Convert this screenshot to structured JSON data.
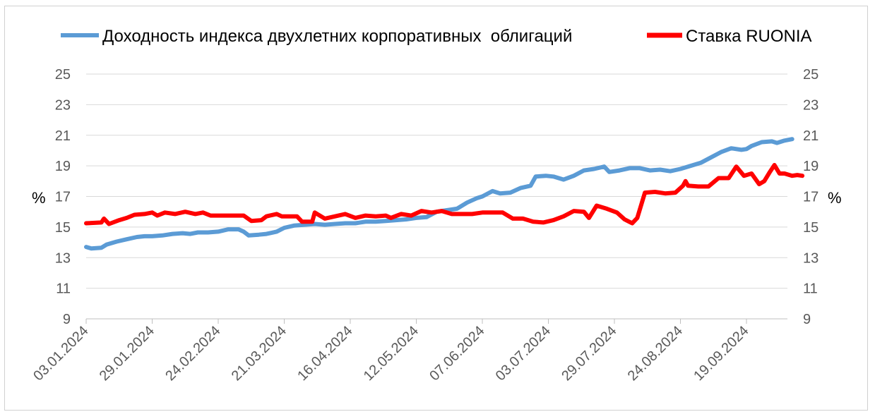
{
  "chart_data": {
    "type": "line",
    "y_unit_left": "%",
    "y_unit_right": "%",
    "ylim": [
      9,
      25
    ],
    "yticks": [
      9,
      11,
      13,
      15,
      17,
      19,
      21,
      23,
      25
    ],
    "grid": "horizontal",
    "legend_position": "top",
    "x_tick_labels": [
      "03.01.2024",
      "29.01.2024",
      "24.02.2024",
      "21.03.2024",
      "16.04.2024",
      "12.05.2024",
      "07.06.2024",
      "03.07.2024",
      "29.07.2024",
      "24.08.2024",
      "19.09.2024"
    ],
    "x_range": [
      "2024-01-03",
      "2024-10-07"
    ],
    "series": [
      {
        "name": "Доходность индекса двухлетних корпоративных  облигаций",
        "color": "#5b9bd5",
        "points": [
          [
            "2024-01-03",
            13.7
          ],
          [
            "2024-01-05",
            13.6
          ],
          [
            "2024-01-09",
            13.65
          ],
          [
            "2024-01-11",
            13.85
          ],
          [
            "2024-01-15",
            14.05
          ],
          [
            "2024-01-19",
            14.2
          ],
          [
            "2024-01-23",
            14.35
          ],
          [
            "2024-01-26",
            14.4
          ],
          [
            "2024-01-29",
            14.4
          ],
          [
            "2024-02-02",
            14.45
          ],
          [
            "2024-02-06",
            14.55
          ],
          [
            "2024-02-10",
            14.6
          ],
          [
            "2024-02-13",
            14.55
          ],
          [
            "2024-02-16",
            14.65
          ],
          [
            "2024-02-20",
            14.65
          ],
          [
            "2024-02-24",
            14.7
          ],
          [
            "2024-02-28",
            14.85
          ],
          [
            "2024-03-03",
            14.85
          ],
          [
            "2024-03-05",
            14.7
          ],
          [
            "2024-03-07",
            14.45
          ],
          [
            "2024-03-11",
            14.5
          ],
          [
            "2024-03-14",
            14.55
          ],
          [
            "2024-03-18",
            14.7
          ],
          [
            "2024-03-21",
            14.95
          ],
          [
            "2024-03-25",
            15.1
          ],
          [
            "2024-03-29",
            15.15
          ],
          [
            "2024-04-02",
            15.2
          ],
          [
            "2024-04-06",
            15.15
          ],
          [
            "2024-04-10",
            15.2
          ],
          [
            "2024-04-14",
            15.25
          ],
          [
            "2024-04-18",
            15.25
          ],
          [
            "2024-04-22",
            15.35
          ],
          [
            "2024-04-26",
            15.35
          ],
          [
            "2024-04-30",
            15.4
          ],
          [
            "2024-05-04",
            15.45
          ],
          [
            "2024-05-08",
            15.5
          ],
          [
            "2024-05-12",
            15.6
          ],
          [
            "2024-05-16",
            15.65
          ],
          [
            "2024-05-20",
            16.0
          ],
          [
            "2024-05-24",
            16.1
          ],
          [
            "2024-05-28",
            16.2
          ],
          [
            "2024-06-01",
            16.6
          ],
          [
            "2024-06-05",
            16.9
          ],
          [
            "2024-06-07",
            17.0
          ],
          [
            "2024-06-11",
            17.35
          ],
          [
            "2024-06-14",
            17.2
          ],
          [
            "2024-06-18",
            17.25
          ],
          [
            "2024-06-22",
            17.55
          ],
          [
            "2024-06-26",
            17.7
          ],
          [
            "2024-06-28",
            18.3
          ],
          [
            "2024-07-02",
            18.35
          ],
          [
            "2024-07-05",
            18.3
          ],
          [
            "2024-07-09",
            18.1
          ],
          [
            "2024-07-13",
            18.35
          ],
          [
            "2024-07-17",
            18.7
          ],
          [
            "2024-07-21",
            18.8
          ],
          [
            "2024-07-25",
            18.95
          ],
          [
            "2024-07-27",
            18.6
          ],
          [
            "2024-07-31",
            18.7
          ],
          [
            "2024-08-04",
            18.85
          ],
          [
            "2024-08-08",
            18.85
          ],
          [
            "2024-08-12",
            18.7
          ],
          [
            "2024-08-16",
            18.75
          ],
          [
            "2024-08-20",
            18.65
          ],
          [
            "2024-08-24",
            18.8
          ],
          [
            "2024-08-28",
            19.0
          ],
          [
            "2024-09-01",
            19.2
          ],
          [
            "2024-09-05",
            19.55
          ],
          [
            "2024-09-09",
            19.9
          ],
          [
            "2024-09-13",
            20.15
          ],
          [
            "2024-09-17",
            20.05
          ],
          [
            "2024-09-19",
            20.1
          ],
          [
            "2024-09-21",
            20.3
          ],
          [
            "2024-09-25",
            20.55
          ],
          [
            "2024-09-29",
            20.6
          ],
          [
            "2024-10-01",
            20.5
          ],
          [
            "2024-10-04",
            20.65
          ],
          [
            "2024-10-07",
            20.75
          ]
        ]
      },
      {
        "name": "Ставка RUONIA",
        "color": "#ff0000",
        "points": [
          [
            "2024-01-03",
            15.25
          ],
          [
            "2024-01-09",
            15.3
          ],
          [
            "2024-01-10",
            15.55
          ],
          [
            "2024-01-12",
            15.2
          ],
          [
            "2024-01-16",
            15.45
          ],
          [
            "2024-01-19",
            15.6
          ],
          [
            "2024-01-22",
            15.8
          ],
          [
            "2024-01-26",
            15.85
          ],
          [
            "2024-01-29",
            15.95
          ],
          [
            "2024-01-31",
            15.75
          ],
          [
            "2024-02-03",
            15.95
          ],
          [
            "2024-02-07",
            15.85
          ],
          [
            "2024-02-11",
            16.0
          ],
          [
            "2024-02-15",
            15.85
          ],
          [
            "2024-02-18",
            15.95
          ],
          [
            "2024-02-21",
            15.75
          ],
          [
            "2024-02-26",
            15.75
          ],
          [
            "2024-03-01",
            15.75
          ],
          [
            "2024-03-05",
            15.75
          ],
          [
            "2024-03-08",
            15.4
          ],
          [
            "2024-03-12",
            15.45
          ],
          [
            "2024-03-14",
            15.7
          ],
          [
            "2024-03-18",
            15.85
          ],
          [
            "2024-03-20",
            15.7
          ],
          [
            "2024-03-26",
            15.7
          ],
          [
            "2024-03-28",
            15.35
          ],
          [
            "2024-04-01",
            15.35
          ],
          [
            "2024-04-02",
            15.95
          ],
          [
            "2024-04-06",
            15.55
          ],
          [
            "2024-04-10",
            15.7
          ],
          [
            "2024-04-14",
            15.85
          ],
          [
            "2024-04-18",
            15.6
          ],
          [
            "2024-04-22",
            15.75
          ],
          [
            "2024-04-26",
            15.7
          ],
          [
            "2024-04-30",
            15.75
          ],
          [
            "2024-05-02",
            15.6
          ],
          [
            "2024-05-06",
            15.85
          ],
          [
            "2024-05-10",
            15.75
          ],
          [
            "2024-05-14",
            16.05
          ],
          [
            "2024-05-18",
            15.95
          ],
          [
            "2024-05-22",
            16.05
          ],
          [
            "2024-05-26",
            15.85
          ],
          [
            "2024-05-30",
            15.85
          ],
          [
            "2024-06-03",
            15.85
          ],
          [
            "2024-06-07",
            15.95
          ],
          [
            "2024-06-11",
            15.95
          ],
          [
            "2024-06-15",
            15.95
          ],
          [
            "2024-06-19",
            15.55
          ],
          [
            "2024-06-23",
            15.55
          ],
          [
            "2024-06-27",
            15.35
          ],
          [
            "2024-07-01",
            15.3
          ],
          [
            "2024-07-05",
            15.45
          ],
          [
            "2024-07-09",
            15.7
          ],
          [
            "2024-07-13",
            16.05
          ],
          [
            "2024-07-17",
            16.0
          ],
          [
            "2024-07-19",
            15.6
          ],
          [
            "2024-07-22",
            16.4
          ],
          [
            "2024-07-26",
            16.2
          ],
          [
            "2024-07-30",
            15.95
          ],
          [
            "2024-08-02",
            15.5
          ],
          [
            "2024-08-05",
            15.25
          ],
          [
            "2024-08-07",
            15.6
          ],
          [
            "2024-08-10",
            17.25
          ],
          [
            "2024-08-14",
            17.3
          ],
          [
            "2024-08-18",
            17.2
          ],
          [
            "2024-08-22",
            17.25
          ],
          [
            "2024-08-25",
            17.7
          ],
          [
            "2024-08-26",
            18.0
          ],
          [
            "2024-08-27",
            17.7
          ],
          [
            "2024-08-31",
            17.65
          ],
          [
            "2024-09-04",
            17.65
          ],
          [
            "2024-09-08",
            18.2
          ],
          [
            "2024-09-12",
            18.2
          ],
          [
            "2024-09-15",
            18.95
          ],
          [
            "2024-09-18",
            18.35
          ],
          [
            "2024-09-21",
            18.5
          ],
          [
            "2024-09-24",
            17.8
          ],
          [
            "2024-09-26",
            18.0
          ],
          [
            "2024-09-28",
            18.55
          ],
          [
            "2024-09-30",
            19.05
          ],
          [
            "2024-10-02",
            18.5
          ],
          [
            "2024-10-04",
            18.5
          ],
          [
            "2024-10-07",
            18.35
          ],
          [
            "2024-10-09",
            18.4
          ],
          [
            "2024-10-11",
            18.35
          ]
        ]
      }
    ]
  }
}
